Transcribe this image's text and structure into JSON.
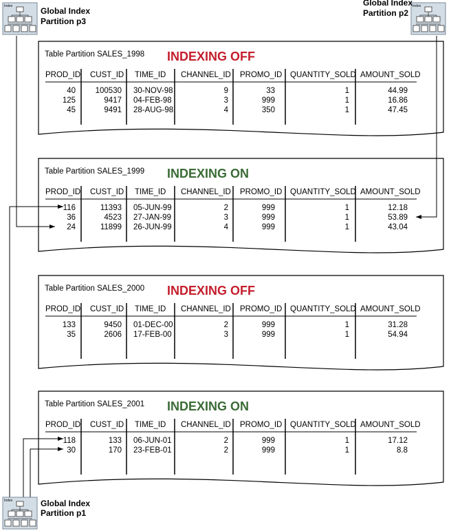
{
  "colors": {
    "off": "#c41e2c",
    "on": "#3a6b35",
    "icon_bg": "#d3dde6"
  },
  "columns": [
    "PROD_ID",
    "CUST_ID",
    "TIME_ID",
    "CHANNEL_ID",
    "PROMO_ID",
    "QUANTITY_SOLD",
    "AMOUNT_SOLD"
  ],
  "partitions": [
    {
      "title": "Table Partition SALES_1998",
      "status": "INDEXING OFF",
      "indexing": "off",
      "rows": [
        [
          "40",
          "100530",
          "30-NOV-98",
          "9",
          "33",
          "1",
          "44.99"
        ],
        [
          "125",
          "9417",
          "04-FEB-98",
          "3",
          "999",
          "1",
          "16.86"
        ],
        [
          "45",
          "9491",
          "28-AUG-98",
          "4",
          "350",
          "1",
          "47.45"
        ]
      ]
    },
    {
      "title": "Table Partition SALES_1999",
      "status": "INDEXING ON",
      "indexing": "on",
      "rows": [
        [
          "116",
          "11393",
          "05-JUN-99",
          "2",
          "999",
          "1",
          "12.18"
        ],
        [
          "36",
          "4523",
          "27-JAN-99",
          "3",
          "999",
          "1",
          "53.89"
        ],
        [
          "24",
          "11899",
          "26-JUN-99",
          "4",
          "999",
          "1",
          "43.04"
        ]
      ]
    },
    {
      "title": "Table Partition SALES_2000",
      "status": "INDEXING OFF",
      "indexing": "off",
      "rows": [
        [
          "133",
          "9450",
          "01-DEC-00",
          "2",
          "999",
          "1",
          "31.28"
        ],
        [
          "35",
          "2606",
          "17-FEB-00",
          "3",
          "999",
          "1",
          "54.94"
        ]
      ]
    },
    {
      "title": "Table Partition SALES_2001",
      "status": "INDEXING ON",
      "indexing": "on",
      "rows": [
        [
          "118",
          "133",
          "06-JUN-01",
          "2",
          "999",
          "1",
          "17.12"
        ],
        [
          "30",
          "170",
          "23-FEB-01",
          "2",
          "999",
          "1",
          "8.8"
        ]
      ]
    }
  ],
  "indexes": [
    {
      "line1": "Global Index",
      "line2": "Partition p3",
      "icon_label": "Index"
    },
    {
      "line1": "Global Index",
      "line2": "Partition p2",
      "icon_label": "Index"
    },
    {
      "line1": "Global Index",
      "line2": "Partition p1",
      "icon_label": "Index"
    }
  ]
}
